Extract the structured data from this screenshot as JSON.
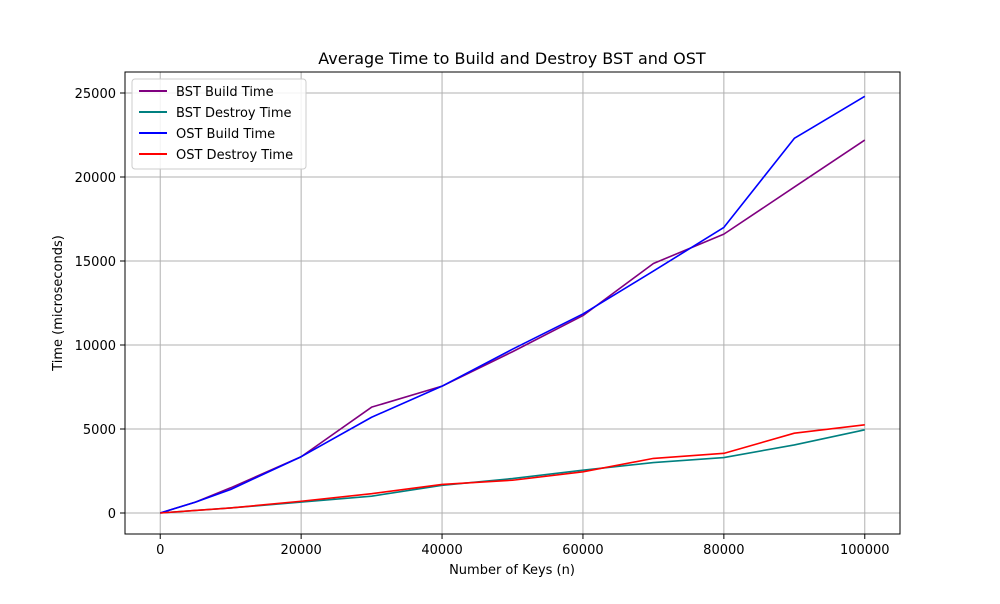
{
  "chart_data": {
    "type": "line",
    "title": "Average Time to Build and Destroy BST and OST",
    "xlabel": "Number of Keys (n)",
    "ylabel": "Time (microseconds)",
    "xlim": [
      -5000,
      105000
    ],
    "ylim": [
      -1250,
      26250
    ],
    "xticks": [
      0,
      20000,
      40000,
      60000,
      80000,
      100000
    ],
    "yticks": [
      0,
      5000,
      10000,
      15000,
      20000,
      25000
    ],
    "grid": true,
    "legend_position": "top-left",
    "x": [
      0,
      5000,
      10000,
      20000,
      30000,
      40000,
      50000,
      60000,
      70000,
      80000,
      90000,
      100000
    ],
    "series": [
      {
        "name": "BST Build Time",
        "color": "#800080",
        "values": [
          0,
          650,
          1500,
          3350,
          6300,
          7550,
          9600,
          11750,
          14850,
          16600,
          19400,
          22200
        ]
      },
      {
        "name": "BST Destroy Time",
        "color": "#008080",
        "values": [
          0,
          150,
          300,
          650,
          1000,
          1650,
          2050,
          2550,
          3000,
          3300,
          4050,
          4950
        ]
      },
      {
        "name": "OST Build Time",
        "color": "#0000ff",
        "values": [
          0,
          650,
          1400,
          3350,
          5700,
          7550,
          9750,
          11850,
          14400,
          17000,
          22300,
          24800
        ]
      },
      {
        "name": "OST Destroy Time",
        "color": "#ff0000",
        "values": [
          0,
          150,
          300,
          700,
          1150,
          1700,
          1950,
          2450,
          3250,
          3550,
          4750,
          5250
        ]
      }
    ]
  }
}
